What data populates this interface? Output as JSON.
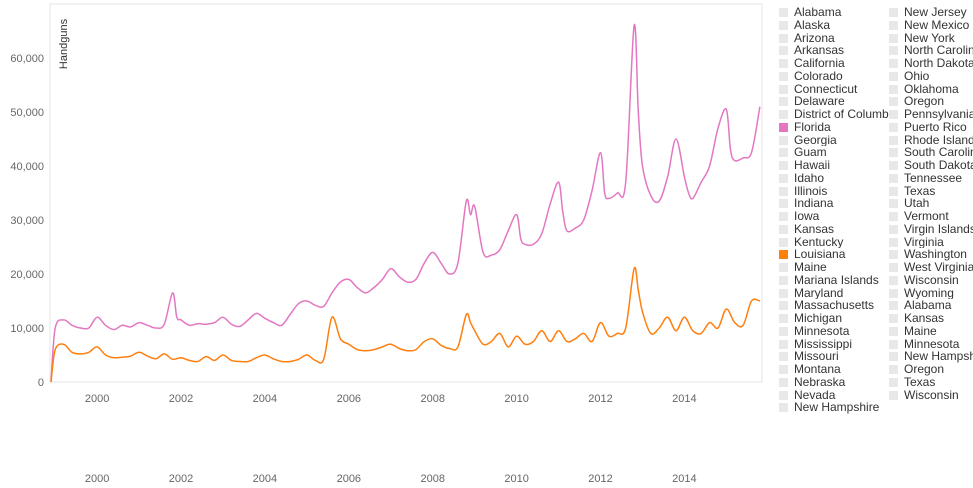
{
  "colors": {
    "florida": "#e377c2",
    "louisiana": "#ff7f0e",
    "axis": "#d8d8d8",
    "swatch_off": "#e8e8e8"
  },
  "chart_data": {
    "type": "line",
    "ylabel": "Handguns",
    "ylim": [
      0,
      70000
    ],
    "y_ticks": [
      0,
      10000,
      20000,
      30000,
      40000,
      50000,
      60000
    ],
    "y_tick_labels": [
      "0",
      "10,000",
      "20,000",
      "30,000",
      "40,000",
      "50,000",
      "60,000"
    ],
    "xlim": [
      1998.9,
      2015.85
    ],
    "x_ticks": [
      2000,
      2002,
      2004,
      2006,
      2008,
      2010,
      2012,
      2014
    ],
    "x_tick_labels": [
      "2000",
      "2002",
      "2004",
      "2006",
      "2008",
      "2010",
      "2012",
      "2014"
    ],
    "series": [
      {
        "name": "Florida",
        "color": "#e377c2",
        "x": [
          1998.9,
          1999.0,
          1999.2,
          1999.4,
          1999.6,
          1999.8,
          2000.0,
          2000.2,
          2000.4,
          2000.6,
          2000.8,
          2001.0,
          2001.2,
          2001.4,
          2001.6,
          2001.8,
          2001.9,
          2002.0,
          2002.2,
          2002.4,
          2002.6,
          2002.8,
          2003.0,
          2003.2,
          2003.4,
          2003.6,
          2003.8,
          2004.0,
          2004.2,
          2004.4,
          2004.6,
          2004.8,
          2005.0,
          2005.2,
          2005.4,
          2005.6,
          2005.8,
          2006.0,
          2006.2,
          2006.4,
          2006.6,
          2006.8,
          2007.0,
          2007.2,
          2007.4,
          2007.6,
          2007.8,
          2008.0,
          2008.2,
          2008.4,
          2008.6,
          2008.8,
          2008.9,
          2009.0,
          2009.2,
          2009.4,
          2009.6,
          2009.8,
          2010.0,
          2010.1,
          2010.2,
          2010.4,
          2010.6,
          2010.8,
          2011.0,
          2011.1,
          2011.2,
          2011.4,
          2011.6,
          2011.8,
          2012.0,
          2012.1,
          2012.2,
          2012.4,
          2012.6,
          2012.8,
          2012.9,
          2013.0,
          2013.2,
          2013.4,
          2013.6,
          2013.8,
          2014.0,
          2014.1,
          2014.2,
          2014.4,
          2014.6,
          2014.8,
          2015.0,
          2015.1,
          2015.2,
          2015.4,
          2015.6,
          2015.8
        ],
        "y": [
          0,
          10000,
          11500,
          10500,
          10000,
          10000,
          12000,
          10500,
          9700,
          10500,
          10200,
          11000,
          10500,
          10000,
          10700,
          16500,
          12000,
          11500,
          10500,
          10800,
          10700,
          11000,
          12000,
          10700,
          10300,
          11500,
          12700,
          11800,
          11000,
          10500,
          12500,
          14500,
          15000,
          14200,
          14000,
          16500,
          18500,
          19000,
          17500,
          16500,
          17500,
          19000,
          21000,
          19500,
          18500,
          19000,
          22000,
          24000,
          22000,
          20000,
          22000,
          33500,
          31000,
          32500,
          24000,
          23500,
          24500,
          28000,
          31000,
          26500,
          25500,
          25500,
          27500,
          33000,
          37000,
          31500,
          28000,
          28500,
          30000,
          35500,
          42500,
          35000,
          34000,
          35000,
          37000,
          66000,
          50000,
          40000,
          34500,
          33500,
          38000,
          45000,
          38000,
          35000,
          34000,
          37000,
          40000,
          47000,
          50500,
          43000,
          41000,
          41500,
          42500,
          51000
        ]
      },
      {
        "name": "Louisiana",
        "color": "#ff7f0e",
        "x": [
          1998.9,
          1999.0,
          1999.2,
          1999.4,
          1999.6,
          1999.8,
          2000.0,
          2000.2,
          2000.4,
          2000.6,
          2000.8,
          2001.0,
          2001.2,
          2001.4,
          2001.6,
          2001.8,
          2002.0,
          2002.2,
          2002.4,
          2002.6,
          2002.8,
          2003.0,
          2003.2,
          2003.4,
          2003.6,
          2003.8,
          2004.0,
          2004.2,
          2004.4,
          2004.6,
          2004.8,
          2005.0,
          2005.2,
          2005.4,
          2005.6,
          2005.8,
          2006.0,
          2006.2,
          2006.4,
          2006.6,
          2006.8,
          2007.0,
          2007.2,
          2007.4,
          2007.6,
          2007.8,
          2008.0,
          2008.2,
          2008.4,
          2008.6,
          2008.8,
          2008.9,
          2009.0,
          2009.2,
          2009.4,
          2009.6,
          2009.8,
          2010.0,
          2010.2,
          2010.4,
          2010.6,
          2010.8,
          2011.0,
          2011.2,
          2011.4,
          2011.6,
          2011.8,
          2012.0,
          2012.2,
          2012.4,
          2012.6,
          2012.8,
          2012.9,
          2013.0,
          2013.2,
          2013.4,
          2013.6,
          2013.8,
          2014.0,
          2014.2,
          2014.4,
          2014.6,
          2014.8,
          2015.0,
          2015.2,
          2015.4,
          2015.6,
          2015.8
        ],
        "y": [
          0,
          6000,
          7000,
          5500,
          5200,
          5500,
          6500,
          5000,
          4500,
          4600,
          4800,
          5500,
          4800,
          4300,
          5200,
          4200,
          4500,
          4000,
          3800,
          4700,
          4000,
          5000,
          4000,
          3800,
          3800,
          4500,
          5000,
          4300,
          3800,
          3800,
          4200,
          5000,
          4000,
          4200,
          12000,
          8000,
          7000,
          6000,
          5800,
          6000,
          6500,
          7000,
          6200,
          5800,
          6000,
          7500,
          8000,
          6800,
          6200,
          6500,
          12500,
          11000,
          9500,
          7000,
          7500,
          9000,
          6500,
          8500,
          7000,
          7500,
          9500,
          7500,
          9500,
          7500,
          8000,
          9000,
          7500,
          11000,
          8500,
          9000,
          10000,
          21000,
          17000,
          13000,
          9000,
          10000,
          12000,
          9500,
          12000,
          9500,
          9000,
          11000,
          10000,
          13500,
          11000,
          10500,
          15000,
          15000
        ]
      }
    ],
    "legend_col1": [
      "Alabama",
      "Alaska",
      "Arizona",
      "Arkansas",
      "California",
      "Colorado",
      "Connecticut",
      "Delaware",
      "District of Columbia",
      "Florida",
      "Georgia",
      "Guam",
      "Hawaii",
      "Idaho",
      "Illinois",
      "Indiana",
      "Iowa",
      "Kansas",
      "Kentucky",
      "Louisiana",
      "Maine",
      "Mariana Islands",
      "Maryland",
      "Massachusetts",
      "Michigan",
      "Minnesota",
      "Mississippi",
      "Missouri",
      "Montana",
      "Nebraska",
      "Nevada",
      "New Hampshire"
    ],
    "legend_col2": [
      "New Jersey",
      "New Mexico",
      "New York",
      "North Carolina",
      "North Dakota",
      "Ohio",
      "Oklahoma",
      "Oregon",
      "Pennsylvania",
      "Puerto Rico",
      "Rhode Island",
      "South Carolina",
      "South Dakota",
      "Tennessee",
      "Texas",
      "Utah",
      "Vermont",
      "Virgin Islands",
      "Virginia",
      "Washington",
      "West Virginia",
      "Wisconsin",
      "Wyoming",
      "Alabama",
      "Kansas",
      "Maine",
      "Minnesota",
      "New Hampshire",
      "Oregon",
      "Texas",
      "Wisconsin"
    ],
    "highlighted": {
      "Florida": "#e377c2",
      "Louisiana": "#ff7f0e"
    }
  }
}
